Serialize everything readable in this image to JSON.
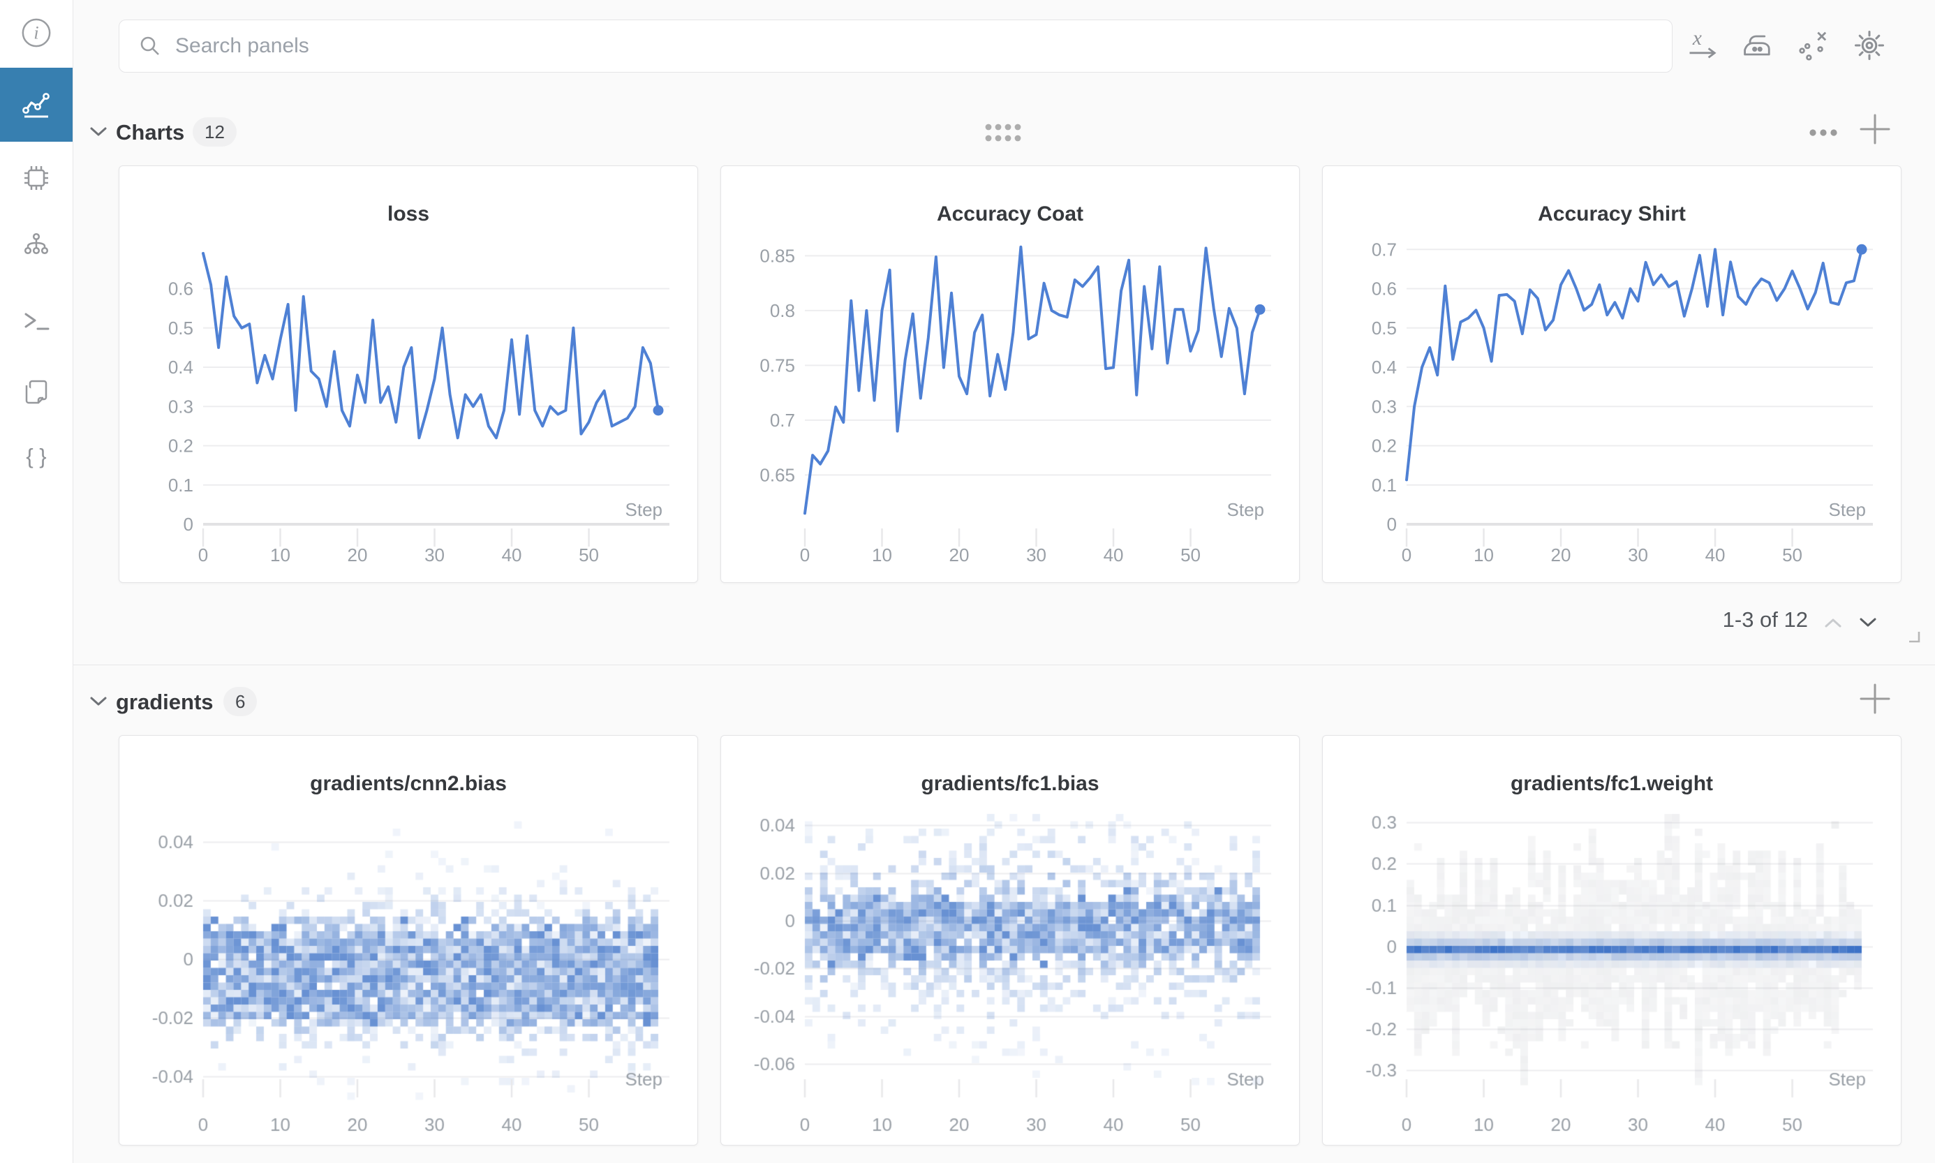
{
  "colors": {
    "accent_line": "#4e80d4",
    "sidebar_active": "#377fb0",
    "background": "#fafafa",
    "panel_border": "#e4e4e6",
    "tick_text": "#9aa0a7"
  },
  "sidebar": {
    "icons": [
      "info",
      "line-chart",
      "system-chip",
      "sweeps-tree",
      "terminal",
      "files",
      "code-braces"
    ],
    "active": "line-chart"
  },
  "topbar": {
    "search_placeholder": "Search panels",
    "icons": [
      "x-axis-expression",
      "smoothing-iron",
      "outlier-points",
      "settings-gear"
    ]
  },
  "sections": {
    "charts": {
      "title": "Charts",
      "count": "12",
      "actions": [
        "overflow-menu",
        "add-panel"
      ],
      "pagination": {
        "label": "1-3 of 12",
        "up_enabled": false,
        "down_enabled": true
      }
    },
    "gradients": {
      "title": "gradients",
      "count": "6",
      "actions": [
        "add-panel"
      ]
    }
  },
  "chart_data": [
    {
      "type": "line",
      "title": "loss",
      "xlabel": "Step",
      "color": "#4e80d4",
      "x": {
        "start": 0,
        "interval": 1,
        "count": 60
      },
      "xticks": [
        0,
        10,
        20,
        30,
        40,
        50
      ],
      "yticks": [
        0,
        0.1,
        0.2,
        0.3,
        0.4,
        0.5,
        0.6
      ],
      "ylim": [
        0,
        0.72
      ],
      "grid": true,
      "end_marker": true,
      "values": [
        0.69,
        0.61,
        0.45,
        0.63,
        0.53,
        0.5,
        0.51,
        0.36,
        0.43,
        0.37,
        0.47,
        0.56,
        0.29,
        0.58,
        0.39,
        0.37,
        0.3,
        0.44,
        0.29,
        0.25,
        0.38,
        0.31,
        0.52,
        0.31,
        0.35,
        0.26,
        0.4,
        0.45,
        0.22,
        0.29,
        0.37,
        0.5,
        0.33,
        0.22,
        0.33,
        0.3,
        0.33,
        0.25,
        0.22,
        0.29,
        0.47,
        0.28,
        0.48,
        0.29,
        0.25,
        0.3,
        0.28,
        0.29,
        0.5,
        0.23,
        0.26,
        0.31,
        0.34,
        0.25,
        0.26,
        0.27,
        0.3,
        0.45,
        0.41,
        0.29
      ]
    },
    {
      "type": "line",
      "title": "Accuracy Coat",
      "xlabel": "Step",
      "color": "#4e80d4",
      "x": {
        "start": 0,
        "interval": 1,
        "count": 60
      },
      "xticks": [
        0,
        10,
        20,
        30,
        40,
        50
      ],
      "yticks": [
        0.65,
        0.7,
        0.75,
        0.8,
        0.85
      ],
      "ylim": [
        0.605,
        0.863
      ],
      "grid": true,
      "end_marker": true,
      "values": [
        0.615,
        0.668,
        0.66,
        0.672,
        0.712,
        0.698,
        0.809,
        0.727,
        0.8,
        0.718,
        0.8,
        0.837,
        0.69,
        0.755,
        0.797,
        0.72,
        0.775,
        0.849,
        0.748,
        0.816,
        0.74,
        0.724,
        0.78,
        0.796,
        0.722,
        0.76,
        0.728,
        0.78,
        0.858,
        0.774,
        0.778,
        0.825,
        0.8,
        0.796,
        0.794,
        0.828,
        0.822,
        0.83,
        0.84,
        0.747,
        0.748,
        0.818,
        0.846,
        0.723,
        0.822,
        0.765,
        0.84,
        0.752,
        0.801,
        0.801,
        0.763,
        0.782,
        0.857,
        0.802,
        0.758,
        0.802,
        0.784,
        0.724,
        0.78,
        0.801
      ]
    },
    {
      "type": "line",
      "title": "Accuracy Shirt",
      "xlabel": "Step",
      "color": "#4e80d4",
      "x": {
        "start": 0,
        "interval": 1,
        "count": 60
      },
      "xticks": [
        0,
        10,
        20,
        30,
        40,
        50
      ],
      "yticks": [
        0,
        0.1,
        0.2,
        0.3,
        0.4,
        0.5,
        0.6,
        0.7
      ],
      "ylim": [
        0,
        0.72
      ],
      "grid": true,
      "end_marker": true,
      "values": [
        0.113,
        0.3,
        0.4,
        0.45,
        0.38,
        0.607,
        0.42,
        0.515,
        0.525,
        0.545,
        0.5,
        0.415,
        0.583,
        0.585,
        0.568,
        0.485,
        0.597,
        0.575,
        0.495,
        0.52,
        0.61,
        0.646,
        0.6,
        0.545,
        0.56,
        0.61,
        0.533,
        0.565,
        0.525,
        0.6,
        0.568,
        0.667,
        0.61,
        0.635,
        0.605,
        0.618,
        0.53,
        0.6,
        0.685,
        0.555,
        0.7,
        0.533,
        0.668,
        0.58,
        0.56,
        0.6,
        0.625,
        0.615,
        0.57,
        0.6,
        0.645,
        0.6,
        0.548,
        0.59,
        0.665,
        0.565,
        0.56,
        0.615,
        0.62,
        0.7
      ]
    },
    {
      "type": "heatmap",
      "subtype": "bias",
      "title": "gradients/cnn2.bias",
      "xlabel": "Step",
      "x": {
        "start": 0,
        "interval": 1,
        "count": 60
      },
      "xticks": [
        0,
        10,
        20,
        30,
        40,
        50
      ],
      "yticks": [
        0.04,
        0.02,
        0,
        -0.02,
        -0.04
      ],
      "ylim": [
        -0.05,
        0.05
      ],
      "palette": "blues",
      "distribution": {
        "center": -0.005,
        "core_sigma": 0.008,
        "tail_sigma": 0.015,
        "tail_weight": 0.5,
        "fill": 1.8,
        "outlier_limit": 0.048
      },
      "seed": 7
    },
    {
      "type": "heatmap",
      "subtype": "bias",
      "title": "gradients/fc1.bias",
      "xlabel": "Step",
      "x": {
        "start": 0,
        "interval": 1,
        "count": 60
      },
      "xticks": [
        0,
        10,
        20,
        30,
        40,
        50
      ],
      "yticks": [
        0.04,
        0.02,
        0,
        -0.02,
        -0.04,
        -0.06
      ],
      "ylim": [
        -0.0775,
        0.0453
      ],
      "palette": "blues",
      "distribution": {
        "center": -0.003,
        "core_sigma": 0.007,
        "tail_sigma": 0.024,
        "tail_weight": 0.5,
        "fill": 1.1,
        "outlier_limit": 0.072
      },
      "seed": 13
    },
    {
      "type": "heatmap",
      "subtype": "weight",
      "title": "gradients/fc1.weight",
      "xlabel": "Step",
      "x": {
        "start": 0,
        "interval": 1,
        "count": 60
      },
      "xticks": [
        0,
        10,
        20,
        30,
        40,
        50
      ],
      "yticks": [
        0.3,
        0.2,
        0.1,
        0,
        -0.1,
        -0.2,
        -0.3
      ],
      "ylim": [
        -0.386,
        0.324
      ],
      "palette": "gray-blue",
      "gray": {
        "min": 0.07,
        "max": 0.27,
        "outlier_limit": 0.31,
        "fill": 0.93
      },
      "blue": {
        "core": [
          -0.02,
          0.003
        ],
        "mid": [
          -0.038,
          0.02
        ],
        "faint": [
          -0.056,
          0.036
        ]
      },
      "seed": 21
    }
  ]
}
